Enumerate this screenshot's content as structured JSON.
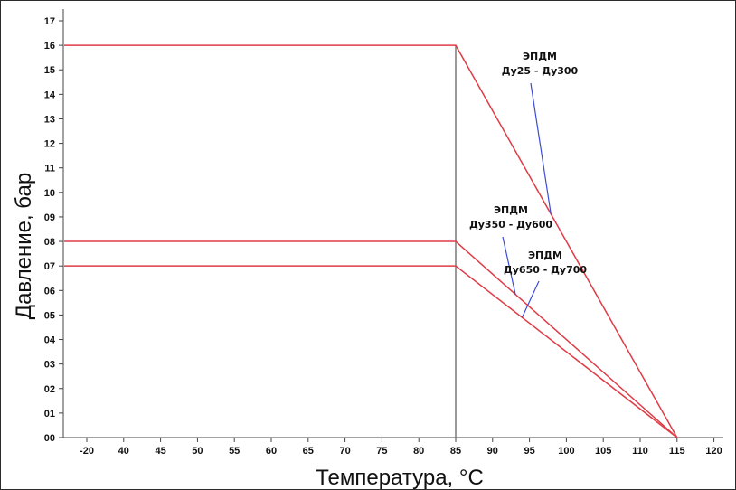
{
  "chart_data": {
    "type": "line",
    "xlabel": "Температура,  °C",
    "ylabel": "Давление, бар",
    "xticks": [
      "-20",
      "40",
      "45",
      "50",
      "55",
      "60",
      "65",
      "70",
      "75",
      "80",
      "85",
      "90",
      "95",
      "100",
      "105",
      "110",
      "115",
      "120"
    ],
    "yticks": [
      "00",
      "01",
      "02",
      "03",
      "04",
      "05",
      "06",
      "07",
      "08",
      "09",
      "10",
      "11",
      "12",
      "13",
      "14",
      "15",
      "16",
      "17"
    ],
    "ylim": [
      0,
      17
    ],
    "grid": false,
    "reference_line_x": "85",
    "series": [
      {
        "name": "ЭПДМ Ду25 - Ду300",
        "color": "#e03c46",
        "x": [
          "-20",
          "85",
          "115"
        ],
        "y": [
          16,
          16,
          0
        ]
      },
      {
        "name": "ЭПДМ Ду350 - Ду600",
        "color": "#e03c46",
        "x": [
          "-20",
          "85",
          "115"
        ],
        "y": [
          8,
          8,
          0
        ]
      },
      {
        "name": "ЭПДМ Ду650 - Ду700",
        "color": "#e03c46",
        "x": [
          "-20",
          "85",
          "115"
        ],
        "y": [
          7,
          7,
          0
        ]
      }
    ],
    "annotations": [
      {
        "lines": [
          "ЭПДМ",
          "Ду25 - Ду300"
        ],
        "series": 0,
        "leader_color": "#3a4bd6"
      },
      {
        "lines": [
          "ЭПДМ",
          "Ду350 - Ду600"
        ],
        "series": 1,
        "leader_color": "#3a4bd6"
      },
      {
        "lines": [
          "ЭПДМ",
          "Ду650 - Ду700"
        ],
        "series": 2,
        "leader_color": "#3a4bd6"
      }
    ]
  }
}
